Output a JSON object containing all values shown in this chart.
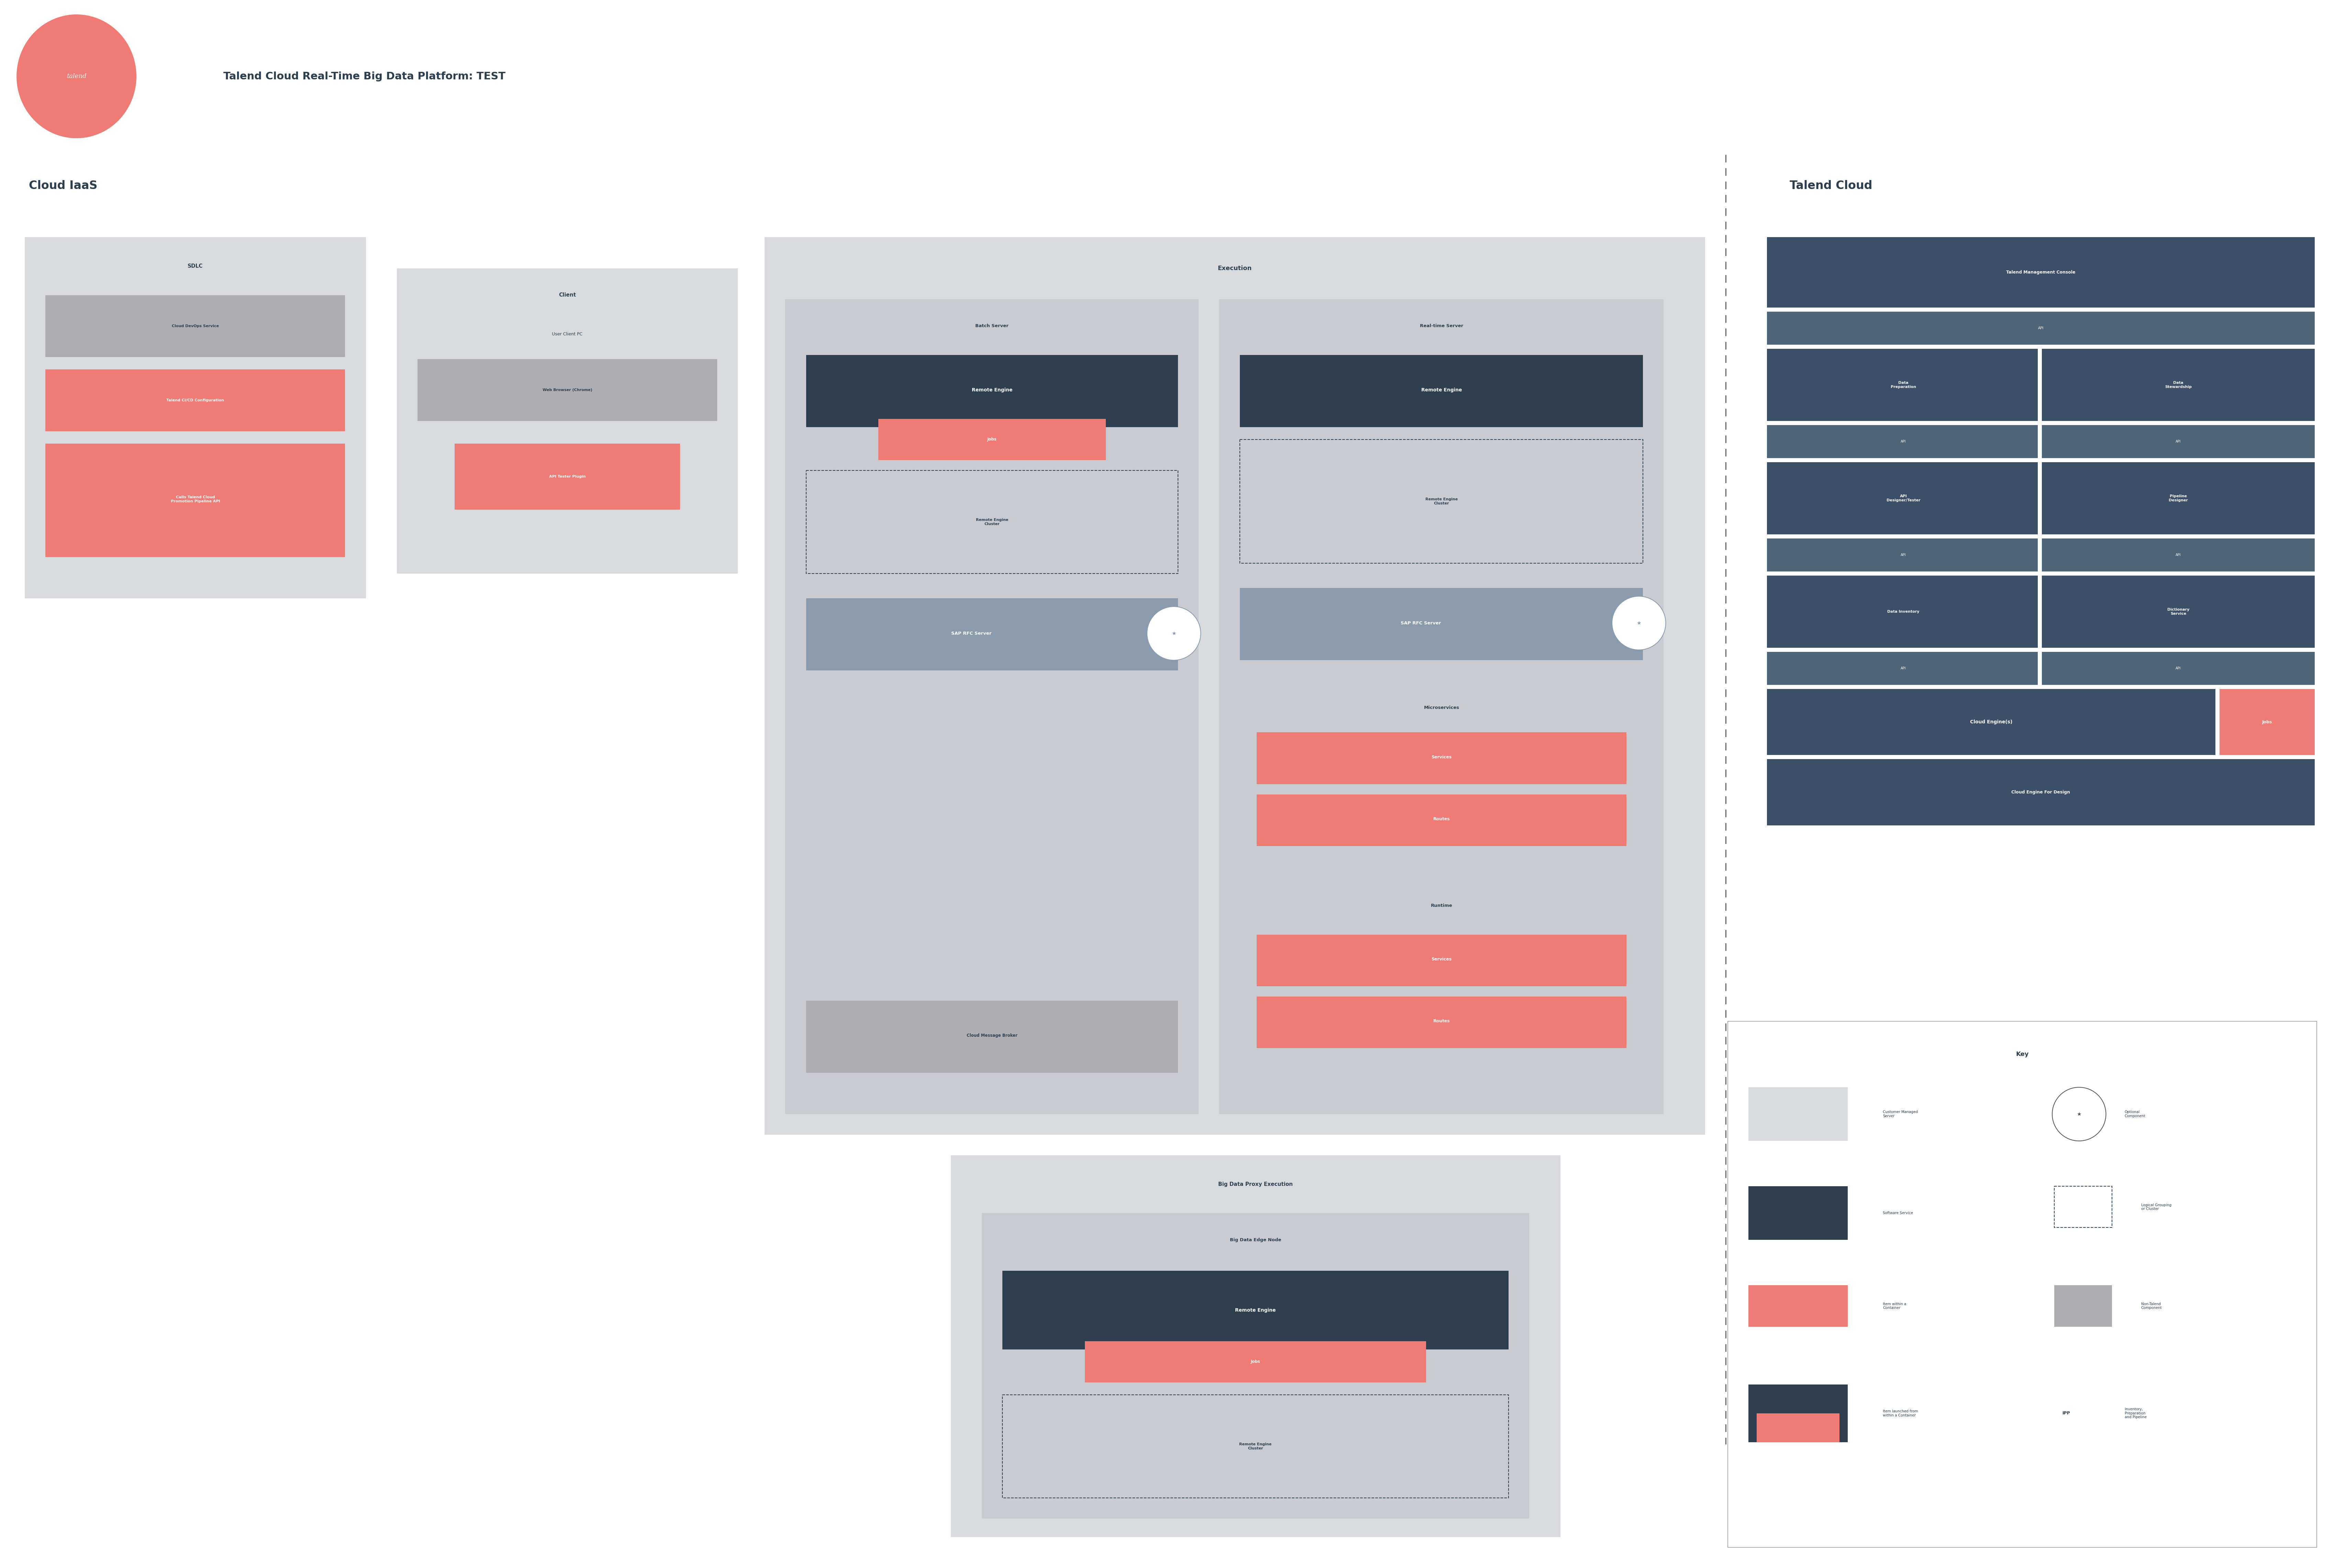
{
  "title": "Talend Cloud Real-Time Big Data Platform: TEST",
  "bg_color": "#ffffff",
  "coral": "#F07B74",
  "dark_blue": "#2D3E4F",
  "light_gray": "#D8DADD",
  "medium_gray": "#AEAEB2",
  "white": "#ffffff",
  "section_bg": "#3B5068",
  "api_bg": "#4E6478",
  "dashed_border": "#2D3E4F",
  "star_gray": "#9DAAB6",
  "key_border": "#999999",
  "sep_color": "#555555",
  "cloud_iaas_label": "Cloud IaaS",
  "talend_cloud_label": "Talend Cloud",
  "sdlc_label": "SDLC",
  "client_label": "Client",
  "execution_label": "Execution",
  "batch_server_label": "Batch Server",
  "realtime_server_label": "Real-time Server",
  "remote_engine_label": "Remote Engine",
  "jobs_label": "Jobs",
  "re_cluster_label": "Remote Engine\nCluster",
  "sap_rfc_label": "SAP RFC Server",
  "cloud_msg_broker_label": "Cloud Message Broker",
  "microservices_label": "Microservices",
  "services_label": "Services",
  "routes_label": "Routes",
  "runtime_label": "Runtime",
  "bdp_label": "Big Data Proxy Execution",
  "bden_label": "Big Data Edge Node",
  "tmc_label": "Talend Management Console",
  "api_label": "API",
  "data_prep_label": "Data\nPreparation",
  "data_stew_label": "Data\nStewardship",
  "api_designer_label": "API\nDesigner/Tester",
  "pipeline_designer_label": "Pipeline\nDesigner",
  "data_inventory_label": "Data Inventory",
  "dict_service_label": "Dictionary\nService",
  "cloud_engines_label": "Cloud Engine(s)",
  "cloud_engine_design_label": "Cloud Engine For Design",
  "user_client_pc_label": "User Client PC",
  "web_browser_label": "Web Browser (Chrome)",
  "api_tester_label": "API Tester Plugin",
  "cloud_devops_label": "Cloud DevOps Service",
  "talend_cicd_label": "Talend CI/CD Configuration",
  "calls_talend_label": "Calls Talend Cloud\nPromotion Pipeline API",
  "key_label": "Key",
  "key_customer_managed": "Customer Managed\nServer",
  "key_optional": "Optional\nComponent",
  "key_software_service": "Software Service",
  "key_logical_grouping": "Logical Grouping\nor Cluster",
  "key_item_within": "Item within a\nContainer",
  "key_non_talend": "Non-Talend\nComponent",
  "key_item_launched": "Item launched from\nwithin a Container",
  "key_ipp_label": "IPP",
  "key_ipp_text": "Inventory,\nPreparation\nand Pipeline"
}
